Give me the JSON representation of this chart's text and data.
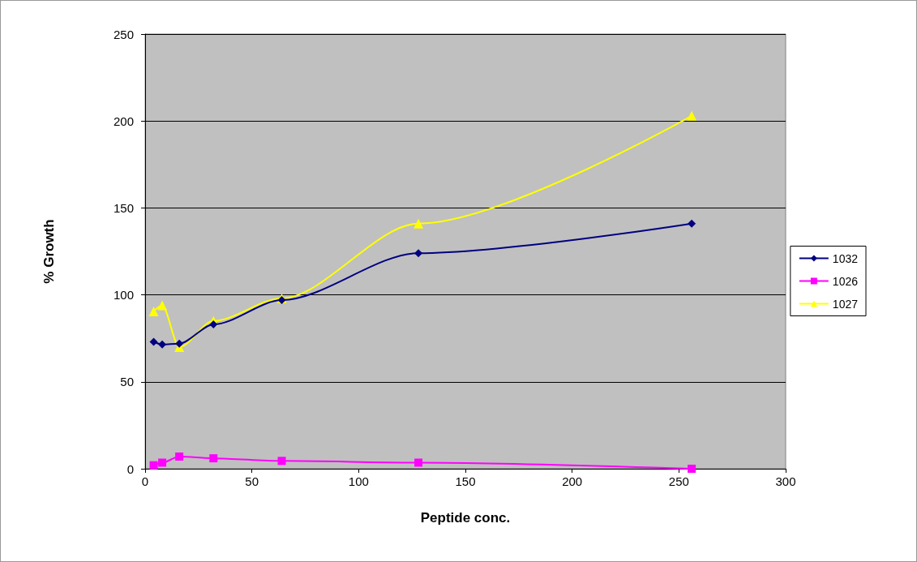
{
  "chart_data": {
    "type": "line",
    "xlabel": "Peptide conc.",
    "ylabel": "% Growth",
    "x": [
      4,
      8,
      16,
      32,
      64,
      128,
      256
    ],
    "series": [
      {
        "name": "1032",
        "color": "#000080",
        "marker": "diamond",
        "values": [
          73,
          71.5,
          72,
          83,
          97,
          124,
          141
        ]
      },
      {
        "name": "1026",
        "color": "#ff00ff",
        "marker": "square",
        "values": [
          2,
          3.5,
          7,
          6,
          4.5,
          3.5,
          0
        ]
      },
      {
        "name": "1027",
        "color": "#ffff00",
        "marker": "triangle",
        "values": [
          90.5,
          94,
          70,
          85,
          98,
          141,
          203
        ]
      }
    ],
    "xlim": [
      0,
      300
    ],
    "xticks": [
      0,
      50,
      100,
      150,
      200,
      250,
      300
    ],
    "ylim": [
      0,
      250
    ],
    "yticks": [
      0,
      50,
      100,
      150,
      200,
      250
    ],
    "grid": "y",
    "legend": "right"
  }
}
